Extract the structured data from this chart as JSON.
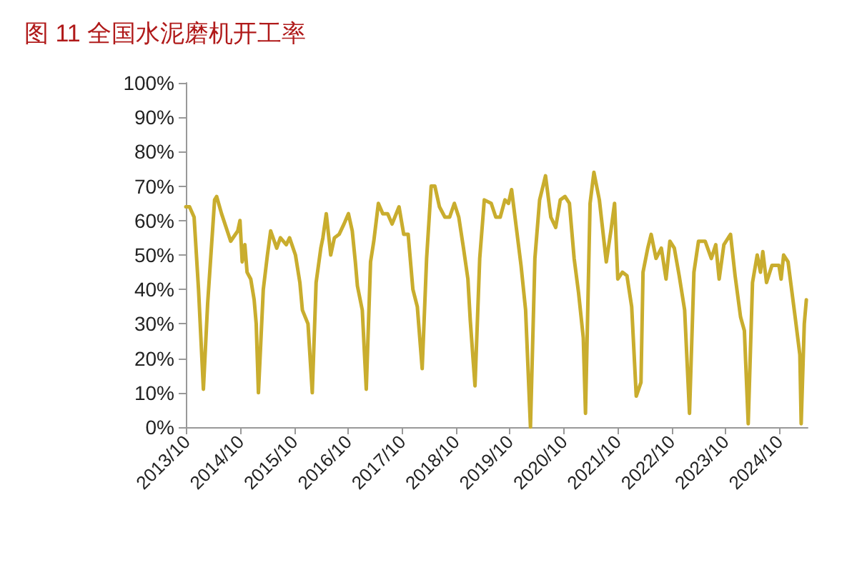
{
  "chart_data": {
    "type": "line",
    "title": "图 11 全国水泥磨机开工率",
    "x": [
      "2013-09-25",
      "2013-10-20",
      "2013-11-20",
      "2013-12-20",
      "2014-01-22",
      "2014-02-20",
      "2014-04-08",
      "2014-04-22",
      "2014-05-25",
      "2014-07-26",
      "2014-09-12",
      "2014-09-27",
      "2014-10-12",
      "2014-10-30",
      "2014-11-14",
      "2014-12-09",
      "2015-01-01",
      "2015-01-15",
      "2015-01-30",
      "2015-03-04",
      "2015-04-01",
      "2015-04-23",
      "2015-06-03",
      "2015-06-28",
      "2015-08-07",
      "2015-08-29",
      "2015-10-08",
      "2015-11-07",
      "2015-11-24",
      "2016-01-01",
      "2016-01-30",
      "2016-02-25",
      "2016-03-28",
      "2016-04-11",
      "2016-05-04",
      "2016-05-19",
      "2016-06-03",
      "2016-06-28",
      "2016-07-30",
      "2016-09-01",
      "2016-10-01",
      "2016-10-27",
      "2016-11-17",
      "2016-12-01",
      "2017-01-03",
      "2017-01-30",
      "2017-02-28",
      "2017-03-22",
      "2017-04-22",
      "2017-05-22",
      "2017-06-24",
      "2017-07-24",
      "2017-09-09",
      "2017-10-11",
      "2017-11-10",
      "2017-12-12",
      "2018-01-11",
      "2018-02-13",
      "2018-03-15",
      "2018-04-15",
      "2018-05-10",
      "2018-06-10",
      "2018-07-17",
      "2018-08-18",
      "2018-09-19",
      "2018-10-19",
      "2018-11-20",
      "2018-12-20",
      "2019-01-05",
      "2019-02-06",
      "2019-03-10",
      "2019-04-10",
      "2019-05-27",
      "2019-06-27",
      "2019-07-27",
      "2019-08-28",
      "2019-09-21",
      "2019-10-12",
      "2019-11-13",
      "2019-12-15",
      "2020-01-15",
      "2020-02-17",
      "2020-03-18",
      "2020-04-19",
      "2020-05-29",
      "2020-07-04",
      "2020-08-06",
      "2020-09-06",
      "2020-10-08",
      "2020-11-07",
      "2020-12-09",
      "2021-01-08",
      "2021-02-09",
      "2021-02-24",
      "2021-03-27",
      "2021-04-22",
      "2021-05-29",
      "2021-07-15",
      "2021-08-15",
      "2021-09-09",
      "2021-10-01",
      "2021-11-01",
      "2021-12-02",
      "2022-01-03",
      "2022-02-03",
      "2022-03-07",
      "2022-03-21",
      "2022-04-22",
      "2022-05-15",
      "2022-06-17",
      "2022-07-23",
      "2022-08-24",
      "2022-09-19",
      "2022-10-19",
      "2022-11-21",
      "2022-12-28",
      "2023-01-30",
      "2023-03-01",
      "2023-04-01",
      "2023-05-16",
      "2023-06-27",
      "2023-07-27",
      "2023-08-19",
      "2023-09-20",
      "2023-11-04",
      "2023-12-05",
      "2024-01-11",
      "2024-02-06",
      "2024-03-03",
      "2024-04-01",
      "2024-05-03",
      "2024-05-25",
      "2024-06-10",
      "2024-07-05",
      "2024-08-11",
      "2024-09-27",
      "2024-10-12",
      "2024-10-29",
      "2024-11-28",
      "2025-01-15",
      "2025-02-16",
      "2025-02-25",
      "2025-03-18",
      "2025-04-01"
    ],
    "series": [
      {
        "color": "#c9ad2e",
        "values": [
          64,
          64,
          61,
          40,
          11,
          36,
          66,
          67,
          62,
          54,
          57,
          60,
          48,
          53,
          45,
          43,
          37,
          30,
          10,
          40,
          50,
          57,
          52,
          55,
          53,
          55,
          50,
          42,
          34,
          30,
          10,
          42,
          52,
          55,
          62,
          56,
          50,
          55,
          56,
          59,
          62,
          57,
          48,
          41,
          34,
          11,
          48,
          54,
          65,
          62,
          62,
          59,
          64,
          56,
          56,
          40,
          35,
          17,
          49,
          70,
          70,
          64,
          61,
          61,
          65,
          61,
          52,
          43,
          31,
          12,
          49,
          66,
          65,
          61,
          61,
          66,
          65,
          69,
          58,
          47,
          34,
          0,
          49,
          66,
          73,
          61,
          58,
          66,
          67,
          65,
          49,
          39,
          26,
          4,
          65,
          74,
          66,
          48,
          57,
          65,
          43,
          45,
          44,
          35,
          9,
          13,
          45,
          52,
          56,
          49,
          52,
          43,
          54,
          52,
          44,
          34,
          4,
          45,
          54,
          54,
          49,
          53,
          43,
          53,
          56,
          44,
          32,
          28,
          1,
          42,
          50,
          45,
          51,
          42,
          47,
          47,
          43,
          50,
          48,
          32,
          21,
          1,
          30,
          37
        ]
      }
    ],
    "xlim": [
      "2013-09-25",
      "2025-04-10"
    ],
    "xticks": [
      {
        "value": "2013-10",
        "label": "2013/10"
      },
      {
        "value": "2014-10",
        "label": "2014/10"
      },
      {
        "value": "2015-10",
        "label": "2015/10"
      },
      {
        "value": "2016-10",
        "label": "2016/10"
      },
      {
        "value": "2017-10",
        "label": "2017/10"
      },
      {
        "value": "2018-10",
        "label": "2018/10"
      },
      {
        "value": "2019-10",
        "label": "2019/10"
      },
      {
        "value": "2020-10",
        "label": "2020/10"
      },
      {
        "value": "2021-10",
        "label": "2021/10"
      },
      {
        "value": "2022-10",
        "label": "2022/10"
      },
      {
        "value": "2023-10",
        "label": "2023/10"
      },
      {
        "value": "2024-10",
        "label": "2024/10"
      }
    ],
    "ylim": [
      0,
      100
    ],
    "yticks": [
      {
        "value": 0,
        "label": "0%"
      },
      {
        "value": 10,
        "label": "10%"
      },
      {
        "value": 20,
        "label": "20%"
      },
      {
        "value": 30,
        "label": "30%"
      },
      {
        "value": 40,
        "label": "40%"
      },
      {
        "value": 50,
        "label": "50%"
      },
      {
        "value": 60,
        "label": "60%"
      },
      {
        "value": 70,
        "label": "70%"
      },
      {
        "value": 80,
        "label": "80%"
      },
      {
        "value": 90,
        "label": "90%"
      },
      {
        "value": 100,
        "label": "100%"
      }
    ],
    "grid": false,
    "marker": "none"
  }
}
